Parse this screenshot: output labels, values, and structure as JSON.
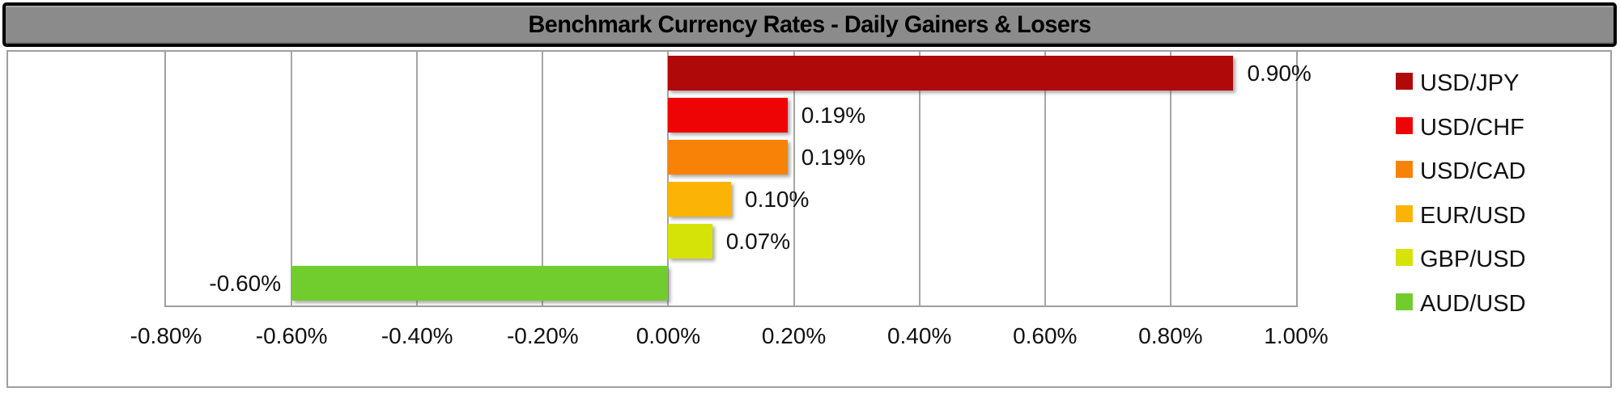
{
  "title": "Benchmark Currency Rates - Daily Gainers & Losers",
  "chart_data": {
    "type": "bar",
    "orientation": "horizontal",
    "title": "Benchmark Currency Rates - Daily Gainers & Losers",
    "categories": [
      "USD/JPY",
      "USD/CHF",
      "USD/CAD",
      "EUR/USD",
      "GBP/USD",
      "AUD/USD"
    ],
    "values": [
      0.9,
      0.19,
      0.19,
      0.1,
      0.07,
      -0.6
    ],
    "data_labels": [
      "0.90%",
      "0.19%",
      "0.19%",
      "0.10%",
      "0.07%",
      "-0.60%"
    ],
    "bar_colors": [
      "#b00909",
      "#ee0404",
      "#f88208",
      "#fbb306",
      "#d6e309",
      "#71cd2d"
    ],
    "x_ticks": [
      "-0.80%",
      "-0.60%",
      "-0.40%",
      "-0.20%",
      "0.00%",
      "0.20%",
      "0.40%",
      "0.60%",
      "0.80%",
      "1.00%"
    ],
    "x_tick_values": [
      -0.8,
      -0.6,
      -0.4,
      -0.2,
      0.0,
      0.2,
      0.4,
      0.6,
      0.8,
      1.0
    ],
    "xlim": [
      -0.8,
      1.0
    ],
    "xlabel": "",
    "ylabel": "",
    "grid": "vertical",
    "legend_position": "right",
    "legend": [
      {
        "label": "USD/JPY",
        "color": "#b00909"
      },
      {
        "label": "USD/CHF",
        "color": "#ee0404"
      },
      {
        "label": "USD/CAD",
        "color": "#f88208"
      },
      {
        "label": "EUR/USD",
        "color": "#fbb306"
      },
      {
        "label": "GBP/USD",
        "color": "#d6e309"
      },
      {
        "label": "AUD/USD",
        "color": "#71cd2d"
      }
    ]
  },
  "colors": {
    "title_bar_bg": "#8b8b8b",
    "title_text": "#000000",
    "frame_border": "#9f9f9f",
    "gridline": "#a6a6a6",
    "label_text": "#111111"
  }
}
